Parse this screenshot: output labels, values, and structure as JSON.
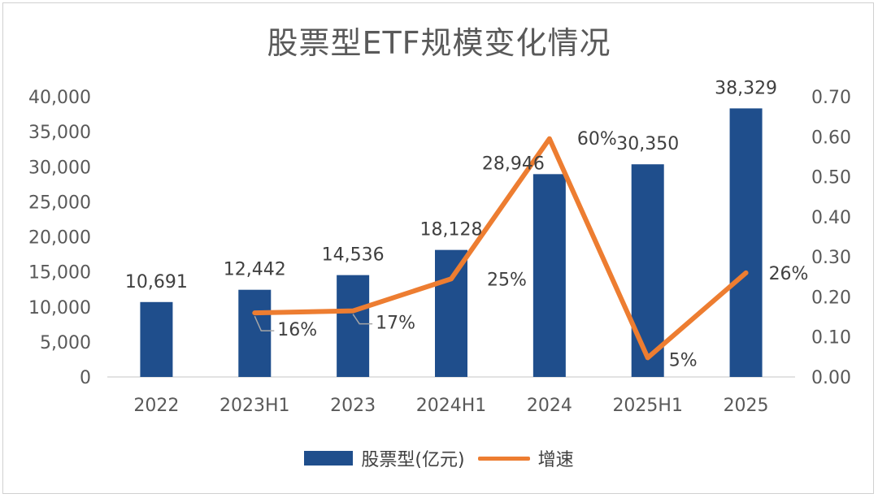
{
  "chart_data": {
    "type": "bar",
    "title": "股票型ETF规模变化情况",
    "categories": [
      "2022",
      "2023H1",
      "2023",
      "2024H1",
      "2024",
      "2025H1",
      "2025"
    ],
    "series": [
      {
        "name": "股票型(亿元)",
        "type": "bar",
        "axis": "left",
        "values": [
          10691,
          12442,
          14536,
          18128,
          28946,
          30350,
          38329
        ],
        "labels": [
          "10,691",
          "12,442",
          "14,536",
          "18,128",
          "28,946",
          "30,350",
          "38,329"
        ]
      },
      {
        "name": "增速",
        "type": "line",
        "axis": "right",
        "values": [
          null,
          0.16,
          0.165,
          0.245,
          0.595,
          0.048,
          0.26
        ],
        "labels": [
          "",
          "16%",
          "17%",
          "25%",
          "60%",
          "5%",
          "26%"
        ]
      }
    ],
    "y_left": {
      "ylim": [
        0,
        40000
      ],
      "ticks": [
        0,
        5000,
        10000,
        15000,
        20000,
        25000,
        30000,
        35000,
        40000
      ],
      "tick_labels": [
        "0",
        "5,000",
        "10,000",
        "15,000",
        "20,000",
        "25,000",
        "30,000",
        "35,000",
        "40,000"
      ]
    },
    "y_right": {
      "ylim": [
        0,
        0.7
      ],
      "ticks": [
        0,
        0.1,
        0.2,
        0.3,
        0.4,
        0.5,
        0.6,
        0.7
      ],
      "tick_labels": [
        "0.00",
        "0.10",
        "0.20",
        "0.30",
        "0.40",
        "0.50",
        "0.60",
        "0.70"
      ]
    },
    "legend": "bottom",
    "grid": false,
    "colors": {
      "bar": "#1f4e8c",
      "line": "#ed7d31",
      "axis": "#d9d9d9",
      "leader": "#a6a6a6"
    }
  }
}
